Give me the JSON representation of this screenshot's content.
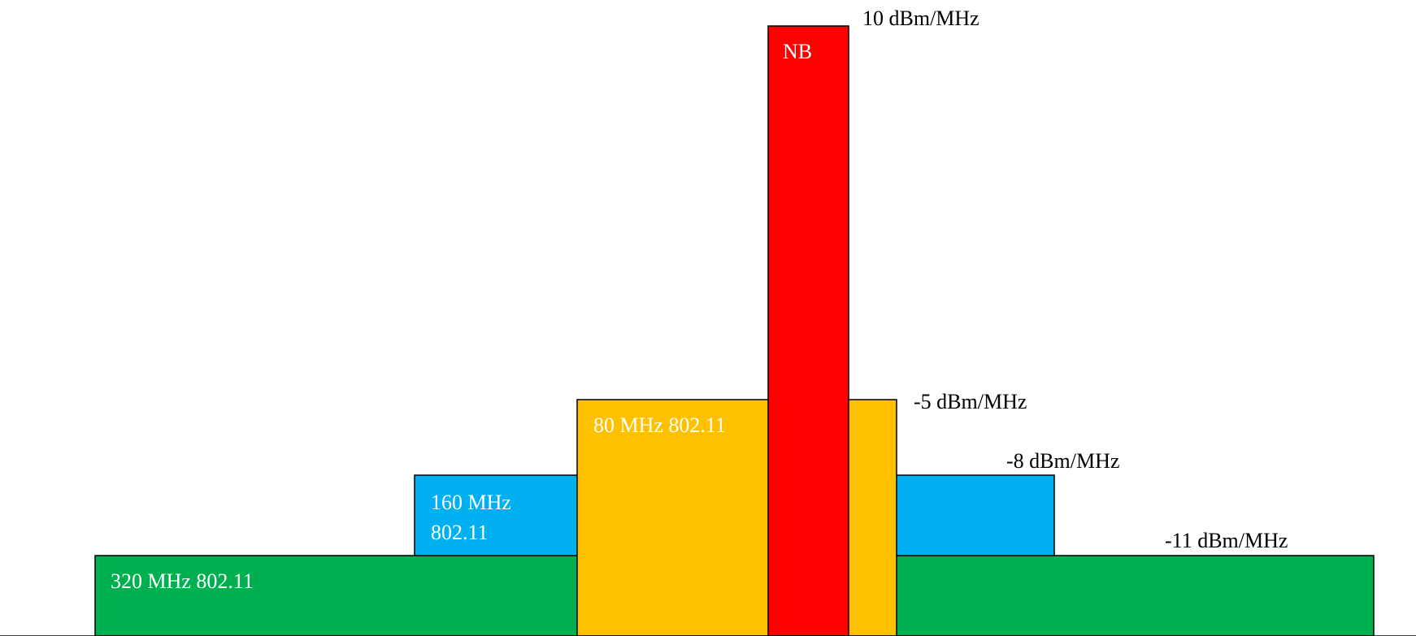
{
  "diagram": {
    "bands": [
      {
        "id": "320",
        "label_lines": [
          "320 MHz 802.11"
        ],
        "psd_label": "-11 dBm/MHz",
        "psd_dbm_per_mhz": -11,
        "color": "#00B050"
      },
      {
        "id": "160",
        "label_lines": [
          "160 MHz",
          "802.11"
        ],
        "psd_label": "-8 dBm/MHz",
        "psd_dbm_per_mhz": -8,
        "color": "#00B0F0"
      },
      {
        "id": "80",
        "label_lines": [
          "80 MHz 802.11"
        ],
        "psd_label": "-5 dBm/MHz",
        "psd_dbm_per_mhz": -5,
        "color": "#FFC000"
      },
      {
        "id": "nb",
        "label_lines": [
          "NB"
        ],
        "psd_label": "10 dBm/MHz",
        "psd_dbm_per_mhz": 10,
        "color": "#FF0000"
      }
    ]
  }
}
